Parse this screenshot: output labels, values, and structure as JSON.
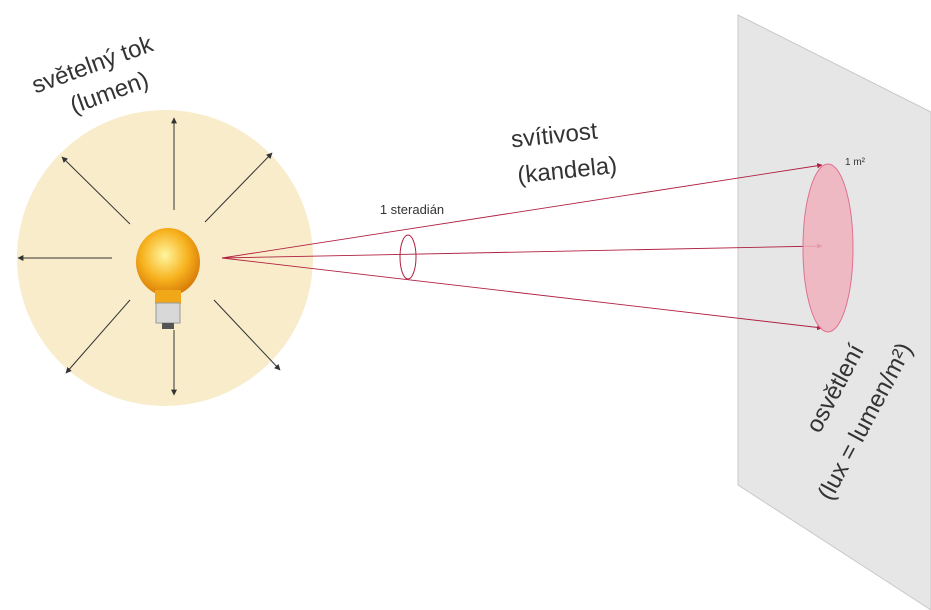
{
  "labels": {
    "flux": "světelný tok",
    "flux_unit": "(lumen)",
    "intensity": "svítivost",
    "intensity_unit": "(kandela)",
    "steradian": "1 steradián",
    "area": "1 m²",
    "illuminance": "osvětlení",
    "illuminance_unit": "(lux = lumen/m²)"
  }
}
